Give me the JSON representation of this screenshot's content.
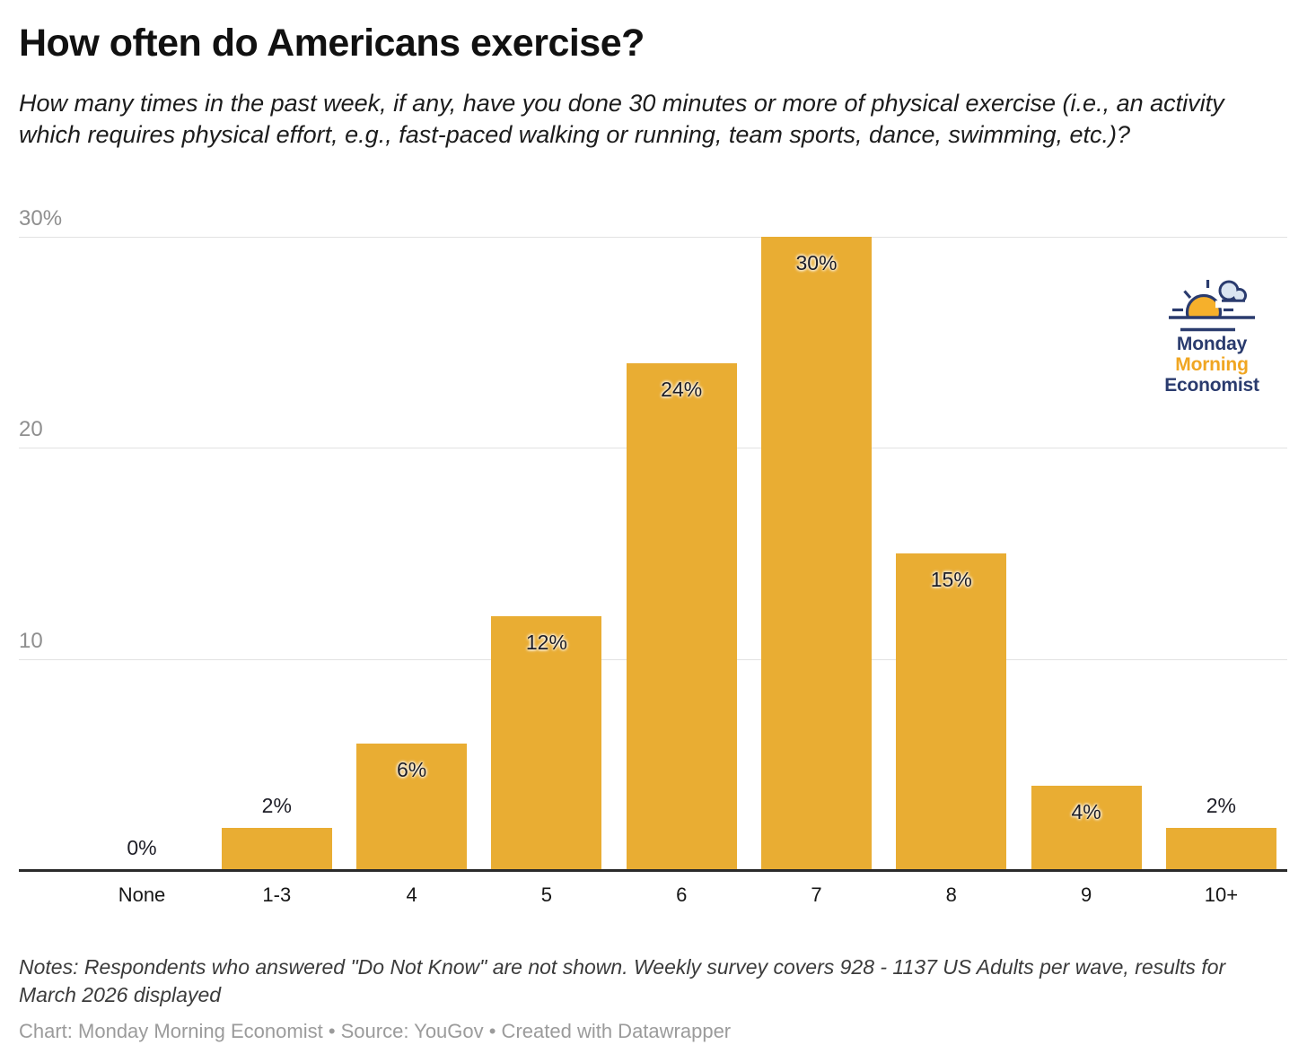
{
  "header": {
    "title": "How often do Americans exercise?",
    "subtitle": "How many times in the past week, if any, have you done 30 minutes or more of physical exercise (i.e., an activity which requires physical effort, e.g., fast-paced walking or running, team sports, dance, swimming, etc.)?"
  },
  "chart_data": {
    "type": "bar",
    "title": "How often do Americans exercise?",
    "xlabel": "",
    "ylabel": "",
    "categories": [
      "None",
      "1-3",
      "4",
      "5",
      "6",
      "7",
      "8",
      "9",
      "10+"
    ],
    "values": [
      0,
      2,
      6,
      12,
      24,
      30,
      15,
      4,
      2
    ],
    "value_labels": [
      "0%",
      "2%",
      "6%",
      "12%",
      "24%",
      "30%",
      "15%",
      "4%",
      "2%"
    ],
    "ylim": [
      0,
      30
    ],
    "y_ticks": [
      {
        "value": 10,
        "label": "10"
      },
      {
        "value": 20,
        "label": "20"
      },
      {
        "value": 30,
        "label": "30%"
      }
    ],
    "grid": "horizontal",
    "legend": "none",
    "bar_color": "#e9ad33",
    "grid_color": "#e2e2e2",
    "axis_color": "#2b2b2b",
    "tick_label_color": "#8f8f8f"
  },
  "logo": {
    "icon": "sunrise-with-cloud",
    "line1": "Monday",
    "line2": "Morning",
    "line3": "Economist",
    "navy": "#2a3b6e",
    "yellow": "#f0a622",
    "cloud_fill": "#dbe5f1",
    "sun_fill": "#f6b02b"
  },
  "footer": {
    "notes": "Notes: Respondents who answered \"Do Not Know\" are not shown. Weekly survey covers 928 - 1137 US Adults per wave, results for March 2026 displayed",
    "credits": "Chart: Monday Morning Economist • Source: YouGov • Created with Datawrapper"
  }
}
